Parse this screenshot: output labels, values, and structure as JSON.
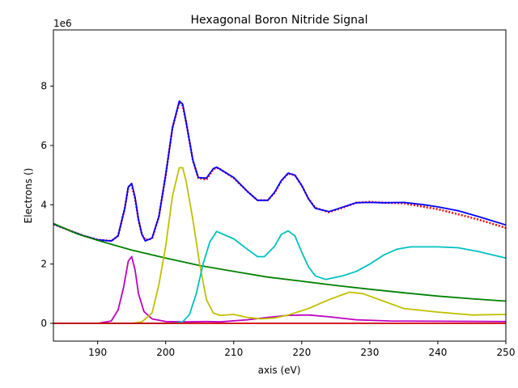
{
  "chart_data": {
    "type": "line",
    "title": "Hexagonal Boron Nitride Signal",
    "xlabel": "axis (eV)",
    "ylabel": "Electrons ()",
    "y_multiplier_label": "1e6",
    "xlim": [
      183.5,
      250
    ],
    "ylim": [
      -0.6,
      9.9
    ],
    "x_ticks": [
      190,
      200,
      210,
      220,
      230,
      240,
      250
    ],
    "x_tick_labels": [
      "190",
      "200",
      "210",
      "220",
      "230",
      "240",
      "250"
    ],
    "y_ticks": [
      0,
      2,
      4,
      6,
      8
    ],
    "y_tick_labels": [
      "0",
      "2",
      "4",
      "6",
      "8"
    ],
    "grid": false,
    "legend": "none",
    "series": [
      {
        "color": "#ff0000",
        "style": "dotted",
        "points": [
          [
            183.5,
            3.35
          ],
          [
            186,
            3.12
          ],
          [
            188,
            2.95
          ],
          [
            190,
            2.82
          ],
          [
            192,
            2.78
          ],
          [
            193,
            2.95
          ],
          [
            194,
            3.9
          ],
          [
            194.5,
            4.6
          ],
          [
            195,
            4.68
          ],
          [
            195.5,
            4.2
          ],
          [
            196,
            3.5
          ],
          [
            196.5,
            3.0
          ],
          [
            197,
            2.82
          ],
          [
            198,
            2.85
          ],
          [
            199,
            3.6
          ],
          [
            200,
            5.0
          ],
          [
            201,
            6.6
          ],
          [
            202,
            7.45
          ],
          [
            202.5,
            7.35
          ],
          [
            203,
            6.8
          ],
          [
            204,
            5.5
          ],
          [
            204.8,
            4.9
          ],
          [
            206,
            4.85
          ],
          [
            207,
            5.2
          ],
          [
            207.5,
            5.25
          ],
          [
            208,
            5.2
          ],
          [
            210,
            4.9
          ],
          [
            212,
            4.45
          ],
          [
            213.5,
            4.15
          ],
          [
            215,
            4.15
          ],
          [
            216,
            4.4
          ],
          [
            217,
            4.8
          ],
          [
            218,
            5.05
          ],
          [
            219,
            5.0
          ],
          [
            220,
            4.65
          ],
          [
            221,
            4.2
          ],
          [
            222,
            3.9
          ],
          [
            224,
            3.75
          ],
          [
            226,
            3.9
          ],
          [
            228,
            4.07
          ],
          [
            230,
            4.1
          ],
          [
            232,
            4.07
          ],
          [
            235,
            4.05
          ],
          [
            238,
            3.93
          ],
          [
            240,
            3.85
          ],
          [
            243,
            3.68
          ],
          [
            246,
            3.5
          ],
          [
            250,
            3.22
          ]
        ]
      },
      {
        "color": "#0000ff",
        "style": "solid",
        "points": [
          [
            183.5,
            3.35
          ],
          [
            186,
            3.12
          ],
          [
            188,
            2.95
          ],
          [
            190,
            2.82
          ],
          [
            192,
            2.78
          ],
          [
            193,
            2.95
          ],
          [
            194,
            3.9
          ],
          [
            194.5,
            4.6
          ],
          [
            195,
            4.72
          ],
          [
            195.5,
            4.25
          ],
          [
            196,
            3.5
          ],
          [
            196.5,
            3.0
          ],
          [
            197,
            2.78
          ],
          [
            198,
            2.88
          ],
          [
            199,
            3.6
          ],
          [
            200,
            5.0
          ],
          [
            201,
            6.6
          ],
          [
            202,
            7.5
          ],
          [
            202.5,
            7.4
          ],
          [
            203,
            6.8
          ],
          [
            204,
            5.5
          ],
          [
            204.8,
            4.92
          ],
          [
            206,
            4.9
          ],
          [
            207,
            5.22
          ],
          [
            207.5,
            5.27
          ],
          [
            208,
            5.2
          ],
          [
            210,
            4.92
          ],
          [
            212,
            4.45
          ],
          [
            213.5,
            4.15
          ],
          [
            215,
            4.15
          ],
          [
            216,
            4.42
          ],
          [
            217,
            4.82
          ],
          [
            218,
            5.07
          ],
          [
            219,
            5.0
          ],
          [
            220,
            4.65
          ],
          [
            221,
            4.2
          ],
          [
            222,
            3.88
          ],
          [
            224,
            3.77
          ],
          [
            226,
            3.92
          ],
          [
            228,
            4.07
          ],
          [
            230,
            4.08
          ],
          [
            232,
            4.07
          ],
          [
            235,
            4.08
          ],
          [
            238,
            4.0
          ],
          [
            240,
            3.93
          ],
          [
            243,
            3.8
          ],
          [
            246,
            3.6
          ],
          [
            250,
            3.32
          ]
        ]
      },
      {
        "color": "#008000",
        "style": "solid",
        "points": [
          [
            183.5,
            3.37
          ],
          [
            187,
            3.02
          ],
          [
            190,
            2.8
          ],
          [
            195,
            2.47
          ],
          [
            200,
            2.2
          ],
          [
            205,
            1.95
          ],
          [
            210,
            1.75
          ],
          [
            215,
            1.56
          ],
          [
            220,
            1.42
          ],
          [
            225,
            1.28
          ],
          [
            230,
            1.15
          ],
          [
            235,
            1.03
          ],
          [
            240,
            0.92
          ],
          [
            245,
            0.83
          ],
          [
            250,
            0.75
          ]
        ]
      },
      {
        "color": "#c000c0",
        "style": "solid",
        "points": [
          [
            183.5,
            0.0
          ],
          [
            190,
            0.0
          ],
          [
            192,
            0.08
          ],
          [
            193,
            0.45
          ],
          [
            193.8,
            1.2
          ],
          [
            194.5,
            2.1
          ],
          [
            195,
            2.25
          ],
          [
            195.5,
            1.8
          ],
          [
            196,
            1.0
          ],
          [
            196.8,
            0.4
          ],
          [
            198,
            0.15
          ],
          [
            200,
            0.06
          ],
          [
            203,
            0.05
          ],
          [
            206,
            0.06
          ],
          [
            208,
            0.05
          ],
          [
            212,
            0.12
          ],
          [
            215,
            0.2
          ],
          [
            218,
            0.27
          ],
          [
            221,
            0.28
          ],
          [
            224,
            0.22
          ],
          [
            228,
            0.12
          ],
          [
            233,
            0.08
          ],
          [
            240,
            0.07
          ],
          [
            250,
            0.06
          ]
        ]
      },
      {
        "color": "#c0c000",
        "style": "solid",
        "points": [
          [
            183.5,
            0.0
          ],
          [
            195,
            0.0
          ],
          [
            196.5,
            0.05
          ],
          [
            198,
            0.35
          ],
          [
            199,
            1.3
          ],
          [
            200,
            2.6
          ],
          [
            201,
            4.3
          ],
          [
            202,
            5.25
          ],
          [
            202.5,
            5.25
          ],
          [
            203,
            4.8
          ],
          [
            204,
            3.5
          ],
          [
            205,
            2.0
          ],
          [
            206,
            0.8
          ],
          [
            207,
            0.35
          ],
          [
            208,
            0.27
          ],
          [
            210,
            0.3
          ],
          [
            212,
            0.2
          ],
          [
            214,
            0.15
          ],
          [
            216,
            0.18
          ],
          [
            218,
            0.28
          ],
          [
            221,
            0.5
          ],
          [
            224,
            0.8
          ],
          [
            227,
            1.05
          ],
          [
            229,
            1.0
          ],
          [
            232,
            0.75
          ],
          [
            235,
            0.5
          ],
          [
            240,
            0.38
          ],
          [
            245,
            0.28
          ],
          [
            250,
            0.3
          ]
        ]
      },
      {
        "color": "#00c0c0",
        "style": "solid",
        "points": [
          [
            183.5,
            0.0
          ],
          [
            201,
            0.0
          ],
          [
            202.5,
            0.05
          ],
          [
            203.5,
            0.3
          ],
          [
            204.5,
            1.0
          ],
          [
            205.5,
            2.0
          ],
          [
            206.5,
            2.75
          ],
          [
            207.5,
            3.1
          ],
          [
            208.5,
            3.0
          ],
          [
            210,
            2.85
          ],
          [
            212,
            2.5
          ],
          [
            213.5,
            2.25
          ],
          [
            214.5,
            2.25
          ],
          [
            216,
            2.6
          ],
          [
            217,
            3.0
          ],
          [
            218,
            3.12
          ],
          [
            219,
            2.95
          ],
          [
            220,
            2.4
          ],
          [
            221,
            1.9
          ],
          [
            222,
            1.6
          ],
          [
            223.5,
            1.48
          ],
          [
            226,
            1.6
          ],
          [
            228,
            1.75
          ],
          [
            230,
            2.0
          ],
          [
            232,
            2.3
          ],
          [
            234,
            2.5
          ],
          [
            236,
            2.58
          ],
          [
            240,
            2.58
          ],
          [
            243,
            2.55
          ],
          [
            246,
            2.42
          ],
          [
            250,
            2.2
          ]
        ]
      },
      {
        "color": "#d00000",
        "style": "solid",
        "points": [
          [
            183.5,
            0.0
          ],
          [
            250,
            0.0
          ]
        ]
      }
    ]
  }
}
